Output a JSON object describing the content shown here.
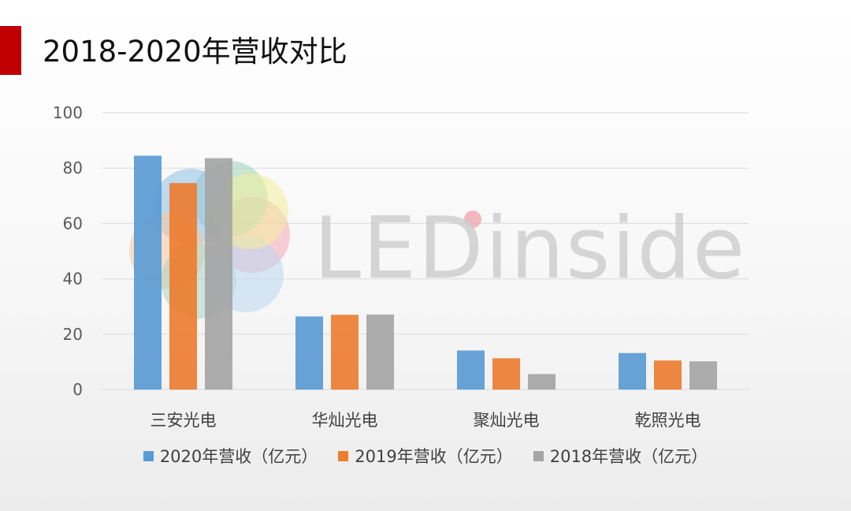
{
  "title": "2018-2020年营收对比",
  "colors": {
    "accent": "#c00000",
    "series": [
      "#5b9bd5",
      "#ed7d31",
      "#a5a5a5"
    ],
    "grid": "#d9d9d9",
    "tick_text": "#595959"
  },
  "watermark": {
    "text": "LEDinside"
  },
  "chart_data": {
    "type": "bar",
    "categories": [
      "三安光电",
      "华灿光电",
      "聚灿光电",
      "乾照光电"
    ],
    "series": [
      {
        "name": "2020年营收（亿元）",
        "values": [
          84.5,
          26.4,
          14.1,
          13.2
        ]
      },
      {
        "name": "2019年营收（亿元）",
        "values": [
          74.6,
          27.0,
          11.3,
          10.5
        ]
      },
      {
        "name": "2018年营收（亿元）",
        "values": [
          83.6,
          27.1,
          5.6,
          10.2
        ]
      }
    ],
    "yticks": [
      0,
      20,
      40,
      60,
      80,
      100
    ],
    "ylim": [
      0,
      100
    ],
    "grid": true,
    "legend": "bottom",
    "xlabel": "",
    "ylabel": ""
  }
}
